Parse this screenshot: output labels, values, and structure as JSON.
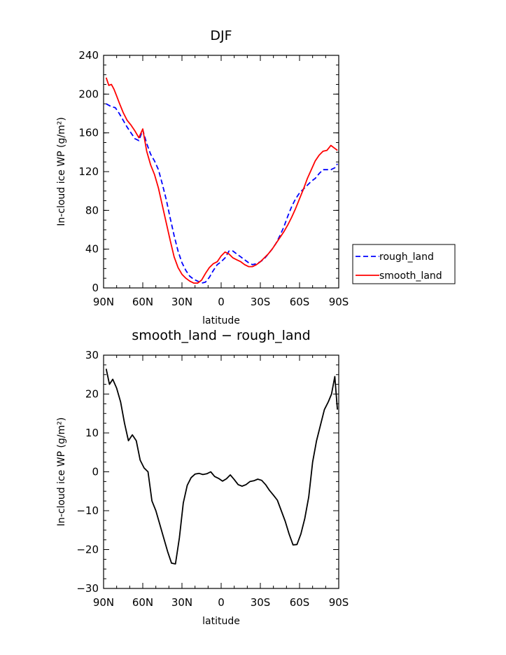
{
  "chart_data": [
    {
      "type": "line",
      "title": "DJF",
      "xlabel": "latitude",
      "ylabel": "In-cloud ice WP (g/m²)",
      "xlim": [
        90,
        -90
      ],
      "ylim": [
        0,
        240
      ],
      "x_tick_values": [
        90,
        60,
        30,
        0,
        -30,
        -60,
        -90
      ],
      "x_tick_labels": [
        "90N",
        "60N",
        "30N",
        "0",
        "30S",
        "60S",
        "90S"
      ],
      "y_tick_values": [
        0,
        40,
        80,
        120,
        160,
        200,
        240
      ],
      "y_tick_labels": [
        "0",
        "40",
        "80",
        "120",
        "160",
        "200",
        "240"
      ],
      "legend": {
        "placement": "right, outside plot"
      },
      "series": [
        {
          "name": "rough_land",
          "color": "#0000ff",
          "style": "dashed",
          "x": [
            88,
            84,
            81,
            78,
            75,
            72,
            69,
            66,
            63,
            60,
            57,
            54,
            51,
            48,
            45,
            42,
            39,
            36,
            33,
            30,
            27,
            24,
            21,
            18,
            15,
            12,
            9,
            6,
            3,
            0,
            -3,
            -6,
            -9,
            -12,
            -15,
            -18,
            -21,
            -24,
            -27,
            -30,
            -33,
            -36,
            -39,
            -42,
            -45,
            -48,
            -51,
            -54,
            -57,
            -60,
            -63,
            -66,
            -69,
            -72,
            -75,
            -78,
            -81,
            -84,
            -87,
            -89
          ],
          "y": [
            190,
            187,
            186,
            180,
            173,
            166,
            160,
            154,
            152,
            163,
            149,
            138,
            131,
            122,
            107,
            91,
            72,
            54,
            38,
            26,
            18,
            12,
            9,
            7,
            5,
            6,
            11,
            18,
            24,
            27,
            31,
            38,
            38,
            35,
            32,
            29,
            26,
            24,
            25,
            27,
            30,
            35,
            40,
            46,
            54,
            63,
            74,
            84,
            92,
            98,
            102,
            106,
            110,
            113,
            118,
            122,
            122,
            122,
            124,
            128
          ]
        },
        {
          "name": "smooth_land",
          "color": "#ff0000",
          "style": "solid",
          "x": [
            88,
            86,
            84,
            82,
            80,
            78,
            75,
            72,
            69,
            66,
            63,
            60,
            57,
            54,
            51,
            48,
            45,
            42,
            39,
            36,
            33,
            30,
            27,
            24,
            21,
            18,
            15,
            12,
            9,
            6,
            3,
            0,
            -3,
            -6,
            -9,
            -12,
            -15,
            -18,
            -21,
            -24,
            -27,
            -30,
            -33,
            -36,
            -39,
            -42,
            -45,
            -48,
            -51,
            -54,
            -57,
            -60,
            -63,
            -66,
            -69,
            -72,
            -75,
            -78,
            -81,
            -84,
            -87,
            -89
          ],
          "y": [
            217,
            209,
            210,
            205,
            198,
            191,
            181,
            173,
            168,
            162,
            155,
            164,
            141,
            127,
            117,
            103,
            85,
            67,
            49,
            32,
            21,
            14,
            10,
            7,
            5,
            5,
            8,
            15,
            21,
            25,
            27,
            33,
            37,
            35,
            31,
            29,
            27,
            24,
            22,
            22,
            24,
            27,
            31,
            35,
            40,
            46,
            52,
            58,
            65,
            73,
            82,
            92,
            102,
            113,
            122,
            131,
            137,
            141,
            142,
            147,
            144,
            142
          ]
        }
      ]
    },
    {
      "type": "line",
      "title": "smooth_land − rough_land",
      "xlabel": "latitude",
      "ylabel": "In-cloud ice WP (g/m²)",
      "xlim": [
        90,
        -90
      ],
      "ylim": [
        -30,
        30
      ],
      "x_tick_values": [
        90,
        60,
        30,
        0,
        -30,
        -60,
        -90
      ],
      "x_tick_labels": [
        "90N",
        "60N",
        "30N",
        "0",
        "30S",
        "60S",
        "90S"
      ],
      "y_tick_values": [
        -30,
        -20,
        -10,
        0,
        10,
        20,
        30
      ],
      "y_tick_labels": [
        "−30",
        "−20",
        "−10",
        "0",
        "10",
        "20",
        "30"
      ],
      "series": [
        {
          "color": "#000000",
          "style": "solid",
          "x": [
            88,
            85.5,
            83,
            80,
            77,
            74,
            71,
            68,
            65,
            62,
            59,
            56,
            53,
            50,
            47,
            44,
            41,
            38,
            35,
            32,
            29,
            26,
            23,
            20,
            17,
            14,
            11,
            8,
            5,
            2,
            -1,
            -4,
            -7,
            -10,
            -13,
            -16,
            -19,
            -22,
            -25,
            -28,
            -31,
            -34,
            -37,
            -40,
            -43,
            -46,
            -49,
            -52,
            -55,
            -58,
            -61,
            -64,
            -67,
            -70,
            -73,
            -76,
            -79,
            -82,
            -84.5,
            -87,
            -89
          ],
          "y": [
            26.5,
            22.5,
            23.8,
            21.5,
            18,
            12.5,
            8,
            9.5,
            8,
            3,
            1,
            0,
            -7.5,
            -10,
            -13.5,
            -17,
            -20.5,
            -23.5,
            -23.7,
            -17,
            -8,
            -3.5,
            -1.5,
            -0.6,
            -0.4,
            -0.7,
            -0.5,
            0,
            -1.2,
            -1.7,
            -2.4,
            -1.8,
            -0.8,
            -2,
            -3.3,
            -3.7,
            -3.3,
            -2.5,
            -2.3,
            -1.9,
            -2.2,
            -3.3,
            -4.8,
            -6,
            -7.3,
            -10,
            -12.7,
            -16,
            -18.8,
            -18.7,
            -16,
            -12,
            -6.5,
            2.5,
            8,
            12,
            16,
            18,
            20,
            24.5,
            16
          ]
        }
      ]
    }
  ]
}
